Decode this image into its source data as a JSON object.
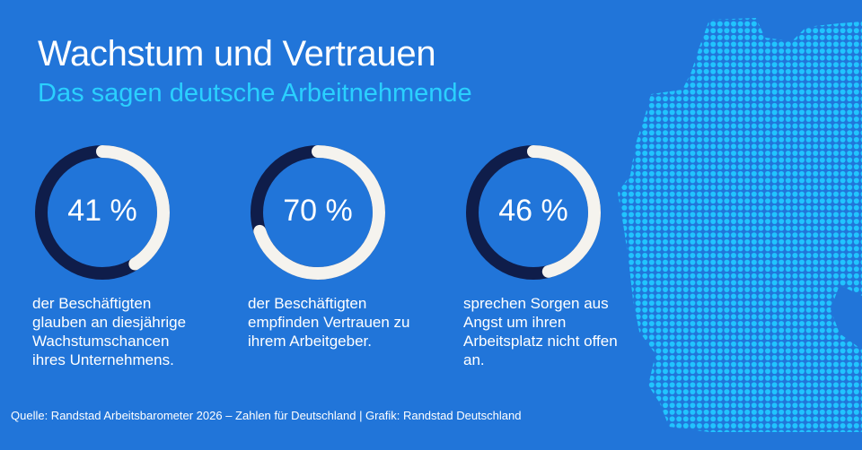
{
  "header": {
    "title": "Wachstum und Vertrauen",
    "subtitle": "Das sagen deutsche Arbeitnehmende"
  },
  "colors": {
    "background": "#2175d9",
    "ring_fill": "#f5f3ee",
    "ring_track": "#0f1d4a",
    "subtitle": "#2ad0ff",
    "map_dots": "#21c4ff"
  },
  "stats": [
    {
      "value": 41,
      "label": "41 %",
      "lines": [
        "der Beschäftigten",
        "glauben an diesjährige",
        "Wachstumschancen",
        "ihres Unternehmens."
      ]
    },
    {
      "value": 70,
      "label": "70 %",
      "lines": [
        "der Beschäftigten",
        "empfinden Vertrauen zu",
        "ihrem Arbeitgeber."
      ]
    },
    {
      "value": 46,
      "label": "46 %",
      "lines": [
        "sprechen Sorgen aus",
        "Angst um ihren",
        "Arbeitsplatz nicht offen",
        "an."
      ]
    }
  ],
  "map_icon": "germany-dot-map",
  "footer": {
    "source": "Quelle: Randstad Arbeitsbarometer 2026 – Zahlen für Deutschland | Grafik: Randstad Deutschland"
  }
}
